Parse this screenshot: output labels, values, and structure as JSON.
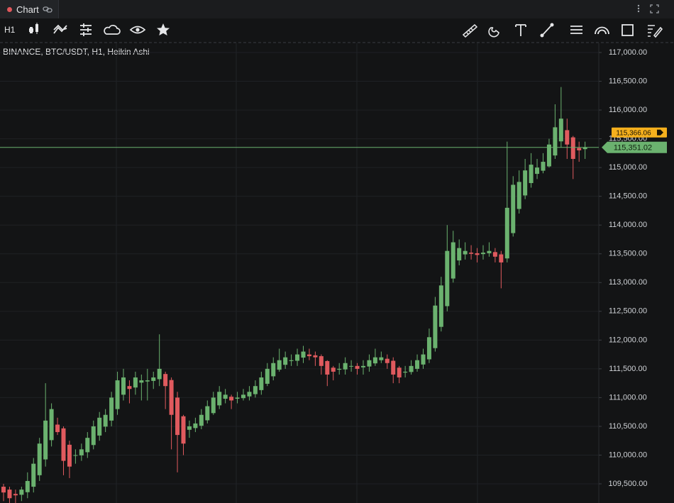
{
  "tab": {
    "title": "Chart"
  },
  "toolbar": {
    "timeframe": "H1"
  },
  "chart_data": {
    "type": "candlestick",
    "title": "BINANCE, BTC/USDT, H1, Heikin Ashi",
    "up_color": "#6bb26f",
    "down_color": "#e05a5e",
    "grid": true,
    "ylim": [
      109167,
      117173
    ],
    "yticks": [
      {
        "value": 109500,
        "label": "109,500.00"
      },
      {
        "value": 110000,
        "label": "110,000.00"
      },
      {
        "value": 110500,
        "label": "110,500.00"
      },
      {
        "value": 111000,
        "label": "111,000.00"
      },
      {
        "value": 111500,
        "label": "111,500.00"
      },
      {
        "value": 112000,
        "label": "112,000.00"
      },
      {
        "value": 112500,
        "label": "112,500.00"
      },
      {
        "value": 113000,
        "label": "113,000.00"
      },
      {
        "value": 113500,
        "label": "113,500.00"
      },
      {
        "value": 114000,
        "label": "114,000.00"
      },
      {
        "value": 114500,
        "label": "114,500.00"
      },
      {
        "value": 115000,
        "label": "115,000.00"
      },
      {
        "value": 115500,
        "label": "115,500.00"
      },
      {
        "value": 116000,
        "label": "116,000.00"
      },
      {
        "value": 116500,
        "label": "116,500.00"
      },
      {
        "value": 117000,
        "label": "117,000.00"
      }
    ],
    "price_line": {
      "value": 115351.02,
      "label": "115,351.02"
    },
    "alert": {
      "value": 115366.06,
      "label": "115,366.06"
    },
    "open": [
      109450,
      109400,
      109325,
      109310,
      109355,
      109450,
      109650,
      109925,
      110260,
      110530,
      110465,
      110180,
      109990,
      109995,
      110050,
      110175,
      110340,
      110495,
      110600,
      110800,
      111050,
      111200,
      111175,
      111260,
      111280,
      111290,
      111320,
      111410,
      111305,
      111000,
      110675,
      110440,
      110470,
      110510,
      110605,
      110730,
      110865,
      110980,
      111015,
      110980,
      110990,
      111020,
      111060,
      111130,
      111240,
      111370,
      111485,
      111570,
      111635,
      111640,
      111695,
      111750,
      111735,
      111720,
      111635,
      111520,
      111485,
      111490,
      111545,
      111550,
      111525,
      111540,
      111595,
      111650,
      111675,
      111640,
      111520,
      111435,
      111445,
      111500,
      111575,
      111665,
      111860,
      112230,
      112590,
      113070,
      113385,
      113490,
      113520,
      113510,
      113495,
      113510,
      113530,
      113490,
      113420,
      113860,
      114280,
      114515,
      114730,
      114890,
      114945,
      115020,
      115210,
      115455,
      115650,
      115525,
      115340,
      115320
    ],
    "high": [
      109500,
      109450,
      109400,
      109450,
      109700,
      109950,
      110300,
      111250,
      110900,
      110650,
      110500,
      110250,
      110100,
      110200,
      110400,
      110600,
      110750,
      110800,
      111100,
      111450,
      111500,
      111300,
      111450,
      111400,
      111500,
      111450,
      112100,
      111450,
      111350,
      111100,
      110700,
      110600,
      110650,
      110800,
      110950,
      111100,
      111200,
      111150,
      111050,
      111100,
      111150,
      111200,
      111300,
      111450,
      111600,
      111700,
      111850,
      111800,
      111750,
      111850,
      111900,
      111850,
      111800,
      111750,
      111650,
      111550,
      111600,
      111700,
      111650,
      111600,
      111650,
      111750,
      111850,
      111800,
      111750,
      111700,
      111550,
      111550,
      111650,
      111750,
      111850,
      112200,
      112750,
      113100,
      114000,
      113900,
      113750,
      113700,
      113650,
      113600,
      113650,
      113700,
      113600,
      113550,
      115450,
      114850,
      114950,
      115150,
      115250,
      115150,
      115250,
      115500,
      116100,
      116400,
      115850,
      115550,
      115450,
      115450
    ],
    "low": [
      109200,
      109100,
      109150,
      109200,
      109250,
      109350,
      109550,
      109800,
      110150,
      110350,
      109650,
      109600,
      109850,
      109900,
      109950,
      110100,
      110250,
      110400,
      110500,
      110700,
      110950,
      110900,
      111050,
      110950,
      110950,
      111150,
      111200,
      110800,
      110100,
      109700,
      110000,
      110300,
      110400,
      110450,
      110550,
      110700,
      110800,
      110900,
      110800,
      110900,
      110950,
      110950,
      111000,
      111050,
      111200,
      111300,
      111450,
      111500,
      111550,
      111550,
      111600,
      111650,
      111550,
      111400,
      111200,
      111300,
      111400,
      111400,
      111450,
      111400,
      111400,
      111450,
      111550,
      111600,
      111500,
      111250,
      111250,
      111350,
      111400,
      111450,
      111500,
      111600,
      111800,
      112150,
      112500,
      113000,
      113300,
      113400,
      113400,
      113350,
      113400,
      113450,
      113350,
      112900,
      113350,
      113800,
      114200,
      114450,
      114650,
      114800,
      114900,
      115000,
      115150,
      115350,
      115150,
      114800,
      115100,
      115150
    ],
    "close": [
      109350,
      109250,
      109300,
      109400,
      109550,
      109850,
      110200,
      110600,
      110800,
      110400,
      109900,
      109800,
      110000,
      110100,
      110300,
      110500,
      110650,
      110700,
      111000,
      111300,
      111350,
      111150,
      111350,
      111300,
      111300,
      111350,
      111500,
      111200,
      110700,
      110350,
      110200,
      110500,
      110550,
      110700,
      110850,
      111000,
      111100,
      111050,
      110950,
      111000,
      111050,
      111100,
      111200,
      111350,
      111500,
      111600,
      111650,
      111700,
      111650,
      111750,
      111800,
      111720,
      111700,
      111550,
      111400,
      111450,
      111500,
      111600,
      111550,
      111500,
      111550,
      111650,
      111700,
      111700,
      111600,
      111400,
      111350,
      111450,
      111550,
      111650,
      111750,
      112050,
      112600,
      112950,
      113550,
      113700,
      113600,
      113550,
      113500,
      113480,
      113520,
      113550,
      113450,
      113350,
      114300,
      114700,
      114750,
      114950,
      115050,
      115000,
      115100,
      115400,
      115700,
      115850,
      115400,
      115150,
      115300,
      115350
    ]
  }
}
